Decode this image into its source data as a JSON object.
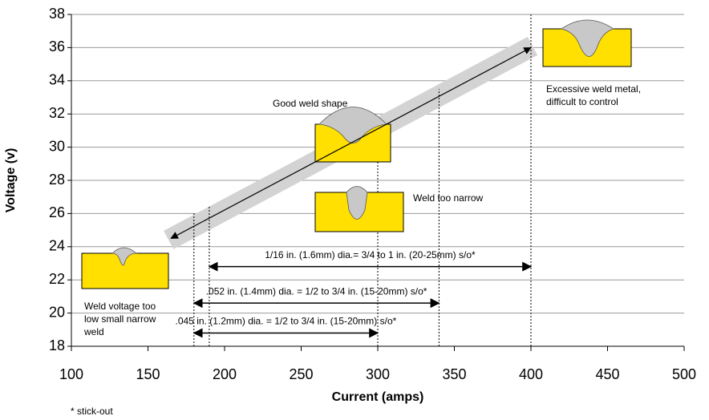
{
  "chart_data": {
    "type": "annotated_scatter",
    "xlabel": "Current (amps)",
    "ylabel": "Voltage (v)",
    "xlim": [
      100,
      500
    ],
    "xticks": [
      100,
      150,
      200,
      250,
      300,
      350,
      400,
      450,
      500
    ],
    "ylim": [
      18,
      38
    ],
    "yticks": [
      18,
      20,
      22,
      24,
      26,
      28,
      30,
      32,
      34,
      36,
      38
    ],
    "grid": true,
    "trend": {
      "x": [
        165,
        400
      ],
      "y": [
        24.5,
        36
      ]
    },
    "reference_lines": [
      {
        "x": 180,
        "y_top": 26
      },
      {
        "x": 190,
        "y_top": 26.5
      },
      {
        "x": 300,
        "y_top": 29.7
      },
      {
        "x": 340,
        "y_top": 33.5
      },
      {
        "x": 400,
        "y_top": 38
      }
    ],
    "ranges": [
      {
        "label": "1/16 in. (1.6mm) dia.= 3/4 to 1 in. (20-25mm) s/o*",
        "x": [
          190,
          400
        ],
        "y": 22.8
      },
      {
        "label": ".052 in. (1.4mm) dia. = 1/2 to 3/4 in. (15-20mm) s/o*",
        "x": [
          180,
          340
        ],
        "y": 20.6
      },
      {
        "label": ".045 in. (1.2mm) dia. = 1/2 to 3/4 in. (15-20mm) s/o*",
        "x": [
          180,
          300
        ],
        "y": 18.8
      }
    ],
    "annotations": [
      {
        "lines": [
          "Good weld shape"
        ]
      },
      {
        "lines": [
          "Weld too narrow"
        ]
      },
      {
        "lines": [
          "Excessive weld metal,",
          "difficult to control"
        ]
      },
      {
        "lines": [
          "Weld voltage too",
          "low small narrow",
          "weld"
        ]
      }
    ],
    "footnote": "* stick-out"
  }
}
